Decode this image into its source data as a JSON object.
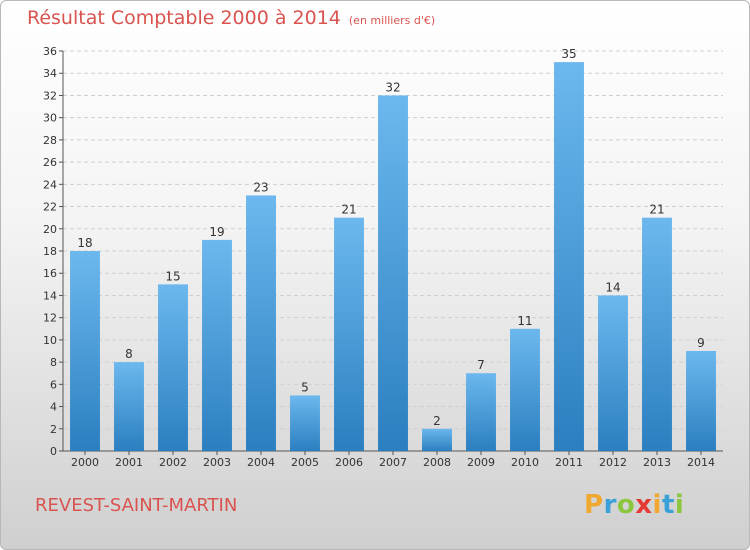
{
  "header": {
    "title": "Résultat Comptable 2000 à 2014",
    "subtitle": "(en milliers d'€)"
  },
  "footer": {
    "commune": "REVEST-SAINT-MARTIN",
    "logo_letters": [
      "P",
      "r",
      "o",
      "x",
      "i",
      "t",
      "i"
    ],
    "logo_colors": [
      "#f0a830",
      "#3aa0d8",
      "#8cc63f",
      "#e53935",
      "#f0a830",
      "#3aa0d8",
      "#8cc63f"
    ]
  },
  "colors": {
    "bar_top": "#6cb8ee",
    "bar_bottom": "#2b7fc0",
    "accent": "#d9534f"
  },
  "chart_data": {
    "type": "bar",
    "title": "Résultat Comptable 2000 à 2014",
    "subtitle": "(en milliers d'€)",
    "xlabel": "",
    "ylabel": "",
    "categories": [
      "2000",
      "2001",
      "2002",
      "2003",
      "2004",
      "2005",
      "2006",
      "2007",
      "2008",
      "2009",
      "2010",
      "2011",
      "2012",
      "2013",
      "2014"
    ],
    "values": [
      18,
      8,
      15,
      19,
      23,
      5,
      21,
      32,
      2,
      7,
      11,
      35,
      14,
      21,
      9
    ],
    "ylim": [
      0,
      36
    ],
    "yticks": [
      0,
      2,
      4,
      6,
      8,
      10,
      12,
      14,
      16,
      18,
      20,
      22,
      24,
      26,
      28,
      30,
      32,
      34,
      36
    ],
    "grid": true
  }
}
